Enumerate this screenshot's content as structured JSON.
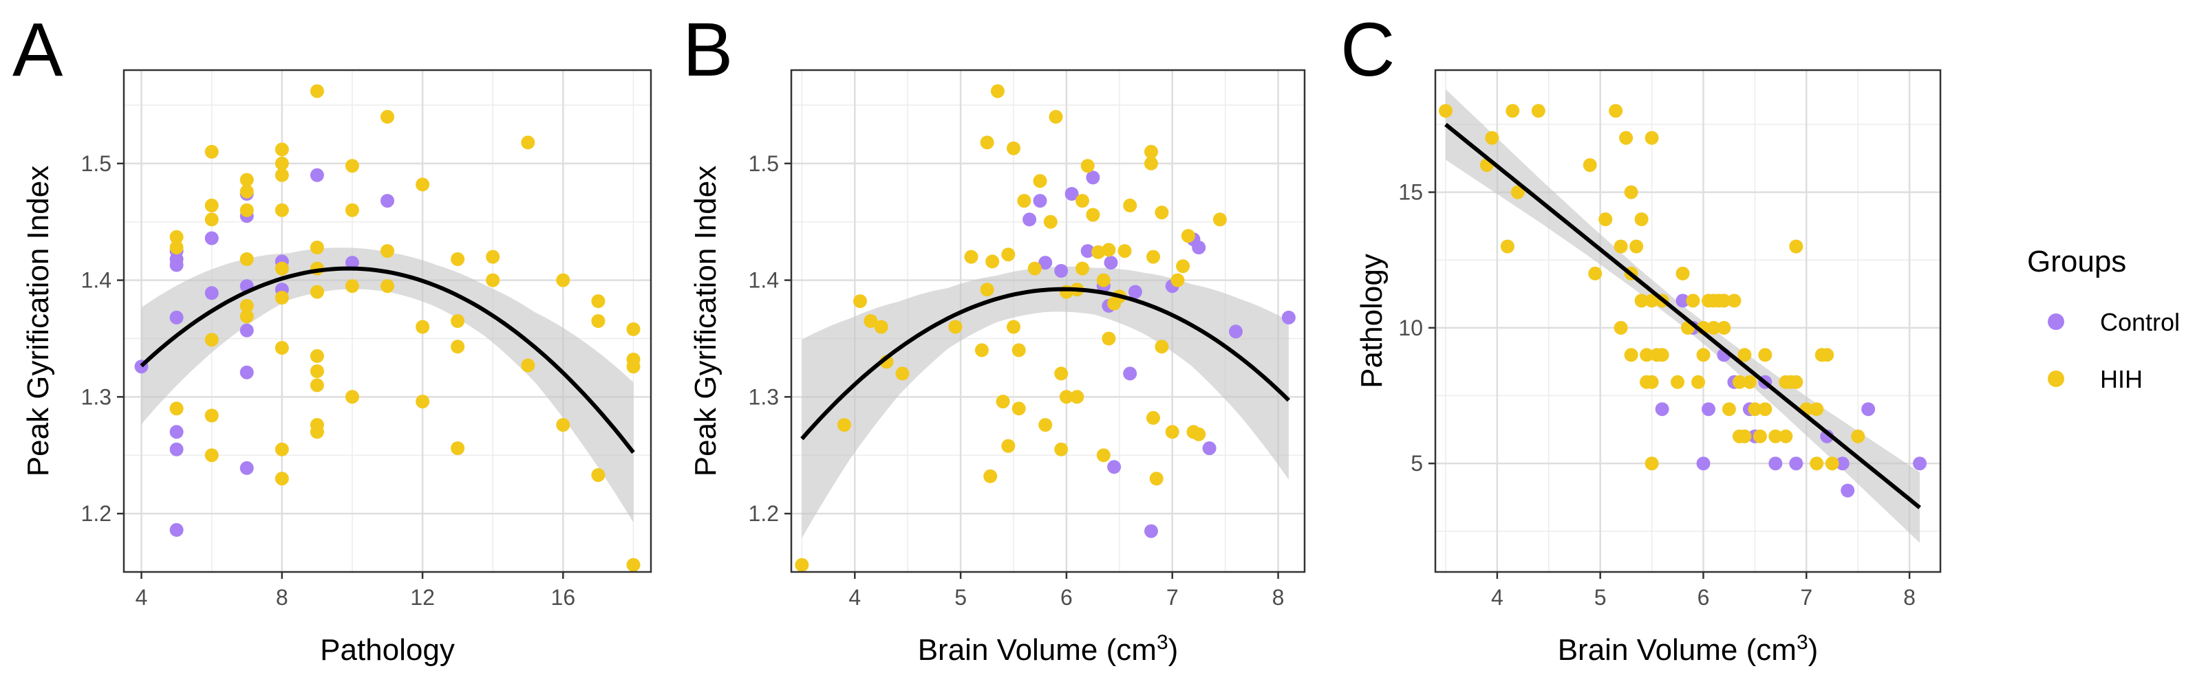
{
  "legend": {
    "title": "Groups",
    "entries": [
      {
        "label": "Control",
        "color": "#a880f4"
      },
      {
        "label": "HIH",
        "color": "#f2c81b"
      }
    ]
  },
  "chart_data": [
    {
      "panel": "A",
      "type": "scatter",
      "xlabel": "Pathology",
      "ylabel": "Peak Gyrification Index",
      "xlim": [
        3.5,
        18.5
      ],
      "ylim": [
        1.15,
        1.58
      ],
      "xticks": [
        4,
        8,
        12,
        16
      ],
      "yticks": [
        1.2,
        1.3,
        1.4,
        1.5
      ],
      "fit": {
        "type": "quadratic",
        "coeffs": [
          1.175,
          0.0475,
          -0.0024
        ],
        "ci_halfwidth": [
          0.05,
          0.04,
          0.03,
          0.02,
          0.018,
          0.017,
          0.018,
          0.022,
          0.03,
          0.045,
          0.06
        ]
      },
      "series": [
        {
          "name": "Control",
          "points": [
            [
              4,
              1.326
            ],
            [
              5,
              1.186
            ],
            [
              5,
              1.255
            ],
            [
              5,
              1.27
            ],
            [
              5,
              1.368
            ],
            [
              5,
              1.413
            ],
            [
              5,
              1.418
            ],
            [
              5,
              1.425
            ],
            [
              6,
              1.389
            ],
            [
              6,
              1.436
            ],
            [
              7,
              1.239
            ],
            [
              7,
              1.321
            ],
            [
              7,
              1.357
            ],
            [
              7,
              1.395
            ],
            [
              7,
              1.455
            ],
            [
              7,
              1.474
            ],
            [
              8,
              1.416
            ],
            [
              8,
              1.392
            ],
            [
              9,
              1.49
            ],
            [
              10,
              1.415
            ],
            [
              11,
              1.468
            ]
          ]
        },
        {
          "name": "HIH",
          "points": [
            [
              5,
              1.29
            ],
            [
              5,
              1.437
            ],
            [
              5,
              1.428
            ],
            [
              6,
              1.25
            ],
            [
              6,
              1.284
            ],
            [
              6,
              1.349
            ],
            [
              6,
              1.452
            ],
            [
              6,
              1.464
            ],
            [
              6,
              1.51
            ],
            [
              7,
              1.369
            ],
            [
              7,
              1.378
            ],
            [
              7,
              1.418
            ],
            [
              7,
              1.46
            ],
            [
              7,
              1.476
            ],
            [
              7,
              1.486
            ],
            [
              8,
              1.23
            ],
            [
              8,
              1.255
            ],
            [
              8,
              1.342
            ],
            [
              8,
              1.385
            ],
            [
              8,
              1.41
            ],
            [
              8,
              1.46
            ],
            [
              8,
              1.49
            ],
            [
              8,
              1.5
            ],
            [
              8,
              1.512
            ],
            [
              9,
              1.27
            ],
            [
              9,
              1.276
            ],
            [
              9,
              1.31
            ],
            [
              9,
              1.322
            ],
            [
              9,
              1.335
            ],
            [
              9,
              1.39
            ],
            [
              9,
              1.41
            ],
            [
              9,
              1.428
            ],
            [
              9,
              1.562
            ],
            [
              10,
              1.3
            ],
            [
              10,
              1.395
            ],
            [
              10,
              1.46
            ],
            [
              10,
              1.498
            ],
            [
              11,
              1.395
            ],
            [
              11,
              1.425
            ],
            [
              11,
              1.54
            ],
            [
              12,
              1.296
            ],
            [
              12,
              1.36
            ],
            [
              12,
              1.482
            ],
            [
              13,
              1.256
            ],
            [
              13,
              1.343
            ],
            [
              13,
              1.365
            ],
            [
              13,
              1.418
            ],
            [
              14,
              1.4
            ],
            [
              14,
              1.42
            ],
            [
              15,
              1.327
            ],
            [
              15,
              1.518
            ],
            [
              16,
              1.276
            ],
            [
              16,
              1.4
            ],
            [
              17,
              1.233
            ],
            [
              17,
              1.365
            ],
            [
              17,
              1.382
            ],
            [
              18,
              1.156
            ],
            [
              18,
              1.326
            ],
            [
              18,
              1.332
            ],
            [
              18,
              1.358
            ]
          ]
        }
      ]
    },
    {
      "panel": "B",
      "type": "scatter",
      "xlabel": "Brain Volume (cm",
      "xlabel_sup": "3",
      "xlabel_close": ")",
      "ylabel": "Peak Gyrification Index",
      "xlim": [
        3.4,
        8.25
      ],
      "ylim": [
        1.15,
        1.58
      ],
      "xticks": [
        4,
        5,
        6,
        7,
        8
      ],
      "yticks": [
        1.2,
        1.3,
        1.4,
        1.5
      ],
      "fit": {
        "type": "quadratic",
        "coeffs": [
          0.6435,
          0.2508,
          -0.021
        ],
        "ci_halfwidth": [
          0.085,
          0.06,
          0.04,
          0.026,
          0.02,
          0.019,
          0.02,
          0.026,
          0.035,
          0.05,
          0.068
        ]
      },
      "series": [
        {
          "name": "Control",
          "points": [
            [
              5.65,
              1.452
            ],
            [
              5.75,
              1.468
            ],
            [
              5.8,
              1.415
            ],
            [
              5.95,
              1.408
            ],
            [
              6.05,
              1.474
            ],
            [
              6.2,
              1.425
            ],
            [
              6.25,
              1.488
            ],
            [
              6.35,
              1.395
            ],
            [
              6.4,
              1.378
            ],
            [
              6.42,
              1.415
            ],
            [
              6.45,
              1.24
            ],
            [
              6.6,
              1.32
            ],
            [
              6.65,
              1.39
            ],
            [
              6.8,
              1.185
            ],
            [
              7.0,
              1.395
            ],
            [
              7.2,
              1.435
            ],
            [
              7.25,
              1.428
            ],
            [
              7.35,
              1.256
            ],
            [
              7.6,
              1.356
            ],
            [
              8.1,
              1.368
            ]
          ]
        },
        {
          "name": "HIH",
          "points": [
            [
              3.5,
              1.156
            ],
            [
              3.9,
              1.276
            ],
            [
              4.05,
              1.382
            ],
            [
              4.15,
              1.365
            ],
            [
              4.25,
              1.36
            ],
            [
              4.3,
              1.33
            ],
            [
              4.45,
              1.32
            ],
            [
              4.95,
              1.36
            ],
            [
              5.1,
              1.42
            ],
            [
              5.2,
              1.34
            ],
            [
              5.25,
              1.392
            ],
            [
              5.25,
              1.518
            ],
            [
              5.28,
              1.232
            ],
            [
              5.3,
              1.416
            ],
            [
              5.35,
              1.562
            ],
            [
              5.4,
              1.296
            ],
            [
              5.45,
              1.422
            ],
            [
              5.45,
              1.258
            ],
            [
              5.5,
              1.513
            ],
            [
              5.5,
              1.36
            ],
            [
              5.55,
              1.34
            ],
            [
              5.55,
              1.29
            ],
            [
              5.6,
              1.468
            ],
            [
              5.7,
              1.41
            ],
            [
              5.75,
              1.485
            ],
            [
              5.8,
              1.276
            ],
            [
              5.85,
              1.45
            ],
            [
              5.9,
              1.54
            ],
            [
              5.95,
              1.32
            ],
            [
              5.95,
              1.255
            ],
            [
              6.0,
              1.39
            ],
            [
              6.0,
              1.3
            ],
            [
              6.1,
              1.392
            ],
            [
              6.1,
              1.3
            ],
            [
              6.15,
              1.468
            ],
            [
              6.15,
              1.41
            ],
            [
              6.2,
              1.498
            ],
            [
              6.25,
              1.456
            ],
            [
              6.3,
              1.424
            ],
            [
              6.35,
              1.25
            ],
            [
              6.35,
              1.4
            ],
            [
              6.4,
              1.426
            ],
            [
              6.4,
              1.35
            ],
            [
              6.45,
              1.38
            ],
            [
              6.5,
              1.386
            ],
            [
              6.55,
              1.425
            ],
            [
              6.6,
              1.464
            ],
            [
              6.8,
              1.51
            ],
            [
              6.8,
              1.5
            ],
            [
              6.82,
              1.42
            ],
            [
              6.82,
              1.282
            ],
            [
              6.85,
              1.23
            ],
            [
              6.9,
              1.458
            ],
            [
              6.9,
              1.343
            ],
            [
              7.0,
              1.27
            ],
            [
              7.05,
              1.4
            ],
            [
              7.1,
              1.412
            ],
            [
              7.15,
              1.438
            ],
            [
              7.2,
              1.27
            ],
            [
              7.25,
              1.268
            ],
            [
              7.45,
              1.452
            ]
          ]
        }
      ]
    },
    {
      "panel": "C",
      "type": "scatter",
      "xlabel": "Brain Volume (cm",
      "xlabel_sup": "3",
      "xlabel_close": ")",
      "ylabel": "Pathology",
      "xlim": [
        3.4,
        8.3
      ],
      "ylim": [
        1.0,
        19.5
      ],
      "xticks": [
        4,
        5,
        6,
        7,
        8
      ],
      "yticks": [
        5,
        10,
        15
      ],
      "fit": {
        "type": "linear",
        "coeffs": [
          28.24,
          -3.07
        ],
        "ci_halfwidth": [
          1.3,
          1.05,
          0.8,
          0.6,
          0.45,
          0.38,
          0.45,
          0.6,
          0.8,
          1.05,
          1.3
        ]
      },
      "series": [
        {
          "name": "Control",
          "points": [
            [
              5.6,
              7
            ],
            [
              5.8,
              11
            ],
            [
              5.9,
              10
            ],
            [
              6.0,
              5
            ],
            [
              6.05,
              7
            ],
            [
              6.2,
              9
            ],
            [
              6.3,
              8
            ],
            [
              6.45,
              7
            ],
            [
              6.5,
              6
            ],
            [
              6.6,
              8
            ],
            [
              6.7,
              5
            ],
            [
              6.9,
              5
            ],
            [
              7.2,
              6
            ],
            [
              7.35,
              5
            ],
            [
              7.4,
              4
            ],
            [
              7.6,
              7
            ],
            [
              8.1,
              5
            ]
          ]
        },
        {
          "name": "HIH",
          "points": [
            [
              3.5,
              18
            ],
            [
              3.9,
              16
            ],
            [
              3.95,
              17
            ],
            [
              4.1,
              13
            ],
            [
              4.15,
              18
            ],
            [
              4.2,
              15
            ],
            [
              4.4,
              18
            ],
            [
              4.9,
              16
            ],
            [
              4.95,
              12
            ],
            [
              5.05,
              14
            ],
            [
              5.15,
              18
            ],
            [
              5.2,
              13
            ],
            [
              5.2,
              10
            ],
            [
              5.25,
              17
            ],
            [
              5.3,
              15
            ],
            [
              5.3,
              12
            ],
            [
              5.3,
              9
            ],
            [
              5.35,
              13
            ],
            [
              5.4,
              14
            ],
            [
              5.4,
              11
            ],
            [
              5.45,
              8
            ],
            [
              5.45,
              9
            ],
            [
              5.5,
              17
            ],
            [
              5.5,
              11
            ],
            [
              5.5,
              8
            ],
            [
              5.5,
              5
            ],
            [
              5.55,
              9
            ],
            [
              5.6,
              11
            ],
            [
              5.6,
              9
            ],
            [
              5.75,
              8
            ],
            [
              5.8,
              12
            ],
            [
              5.85,
              10
            ],
            [
              5.9,
              11
            ],
            [
              5.95,
              8
            ],
            [
              6.0,
              9
            ],
            [
              6.0,
              10
            ],
            [
              6.05,
              11
            ],
            [
              6.1,
              10
            ],
            [
              6.1,
              11
            ],
            [
              6.15,
              11
            ],
            [
              6.2,
              10
            ],
            [
              6.2,
              11
            ],
            [
              6.25,
              7
            ],
            [
              6.3,
              11
            ],
            [
              6.35,
              8
            ],
            [
              6.35,
              6
            ],
            [
              6.4,
              9
            ],
            [
              6.4,
              6
            ],
            [
              6.45,
              8
            ],
            [
              6.5,
              7
            ],
            [
              6.55,
              6
            ],
            [
              6.6,
              7
            ],
            [
              6.6,
              9
            ],
            [
              6.7,
              6
            ],
            [
              6.8,
              8
            ],
            [
              6.8,
              6
            ],
            [
              6.85,
              8
            ],
            [
              6.9,
              13
            ],
            [
              6.9,
              8
            ],
            [
              7.0,
              7
            ],
            [
              7.1,
              5
            ],
            [
              7.1,
              7
            ],
            [
              7.15,
              9
            ],
            [
              7.2,
              9
            ],
            [
              7.25,
              5
            ],
            [
              7.5,
              6
            ]
          ]
        }
      ]
    }
  ]
}
